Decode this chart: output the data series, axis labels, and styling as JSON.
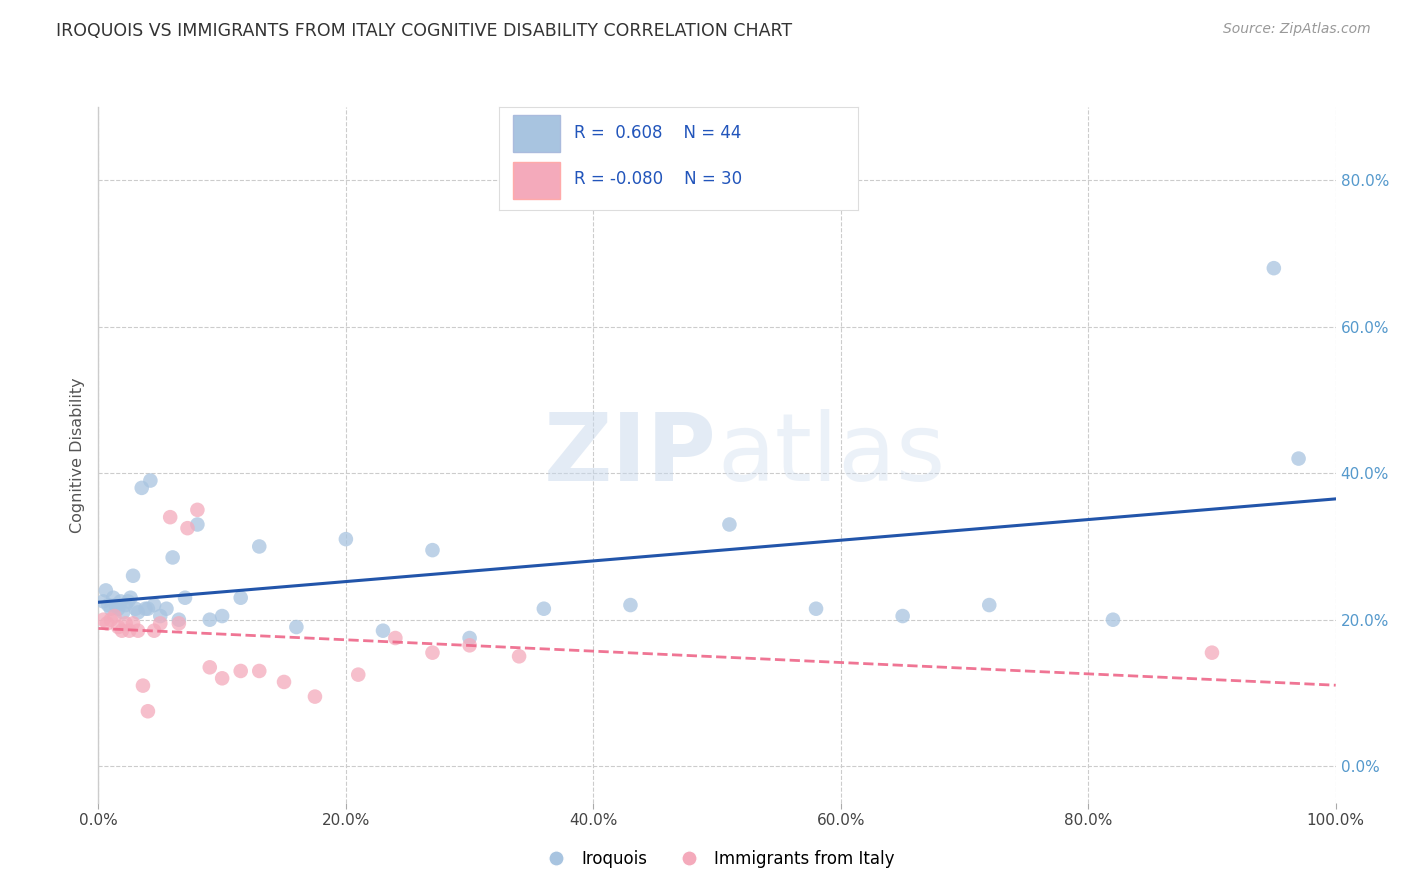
{
  "title": "IROQUOIS VS IMMIGRANTS FROM ITALY COGNITIVE DISABILITY CORRELATION CHART",
  "source": "Source: ZipAtlas.com",
  "ylabel": "Cognitive Disability",
  "watermark": "ZIPatlas",
  "blue_color": "#A8C4E0",
  "pink_color": "#F4AABB",
  "line_blue": "#2255AA",
  "line_pink": "#EE6688",
  "grid_color": "#CCCCCC",
  "tick_color": "#5599CC",
  "title_color": "#333333",
  "source_color": "#999999",
  "ylabel_color": "#555555",
  "xlim": [
    0.0,
    1.0
  ],
  "ylim": [
    -0.05,
    0.9
  ],
  "xticks": [
    0.0,
    0.2,
    0.4,
    0.6,
    0.8,
    1.0
  ],
  "yticks": [
    0.0,
    0.2,
    0.4,
    0.6,
    0.8
  ],
  "blue_x": [
    0.004,
    0.006,
    0.008,
    0.01,
    0.012,
    0.014,
    0.016,
    0.018,
    0.02,
    0.022,
    0.024,
    0.026,
    0.028,
    0.03,
    0.032,
    0.035,
    0.038,
    0.04,
    0.042,
    0.045,
    0.05,
    0.055,
    0.06,
    0.065,
    0.07,
    0.08,
    0.09,
    0.1,
    0.115,
    0.13,
    0.16,
    0.2,
    0.23,
    0.27,
    0.3,
    0.36,
    0.43,
    0.51,
    0.58,
    0.65,
    0.72,
    0.82,
    0.95,
    0.97
  ],
  "blue_y": [
    0.225,
    0.24,
    0.22,
    0.215,
    0.23,
    0.22,
    0.215,
    0.225,
    0.21,
    0.22,
    0.225,
    0.23,
    0.26,
    0.215,
    0.21,
    0.38,
    0.215,
    0.215,
    0.39,
    0.22,
    0.205,
    0.215,
    0.285,
    0.2,
    0.23,
    0.33,
    0.2,
    0.205,
    0.23,
    0.3,
    0.19,
    0.31,
    0.185,
    0.295,
    0.175,
    0.215,
    0.22,
    0.33,
    0.215,
    0.205,
    0.22,
    0.2,
    0.68,
    0.42
  ],
  "pink_x": [
    0.004,
    0.007,
    0.01,
    0.013,
    0.016,
    0.019,
    0.022,
    0.025,
    0.028,
    0.032,
    0.036,
    0.04,
    0.045,
    0.05,
    0.058,
    0.065,
    0.072,
    0.08,
    0.09,
    0.1,
    0.115,
    0.13,
    0.15,
    0.175,
    0.21,
    0.24,
    0.27,
    0.3,
    0.34,
    0.9
  ],
  "pink_y": [
    0.2,
    0.195,
    0.2,
    0.205,
    0.19,
    0.185,
    0.195,
    0.185,
    0.195,
    0.185,
    0.11,
    0.075,
    0.185,
    0.195,
    0.34,
    0.195,
    0.325,
    0.35,
    0.135,
    0.12,
    0.13,
    0.13,
    0.115,
    0.095,
    0.125,
    0.175,
    0.155,
    0.165,
    0.15,
    0.155
  ]
}
